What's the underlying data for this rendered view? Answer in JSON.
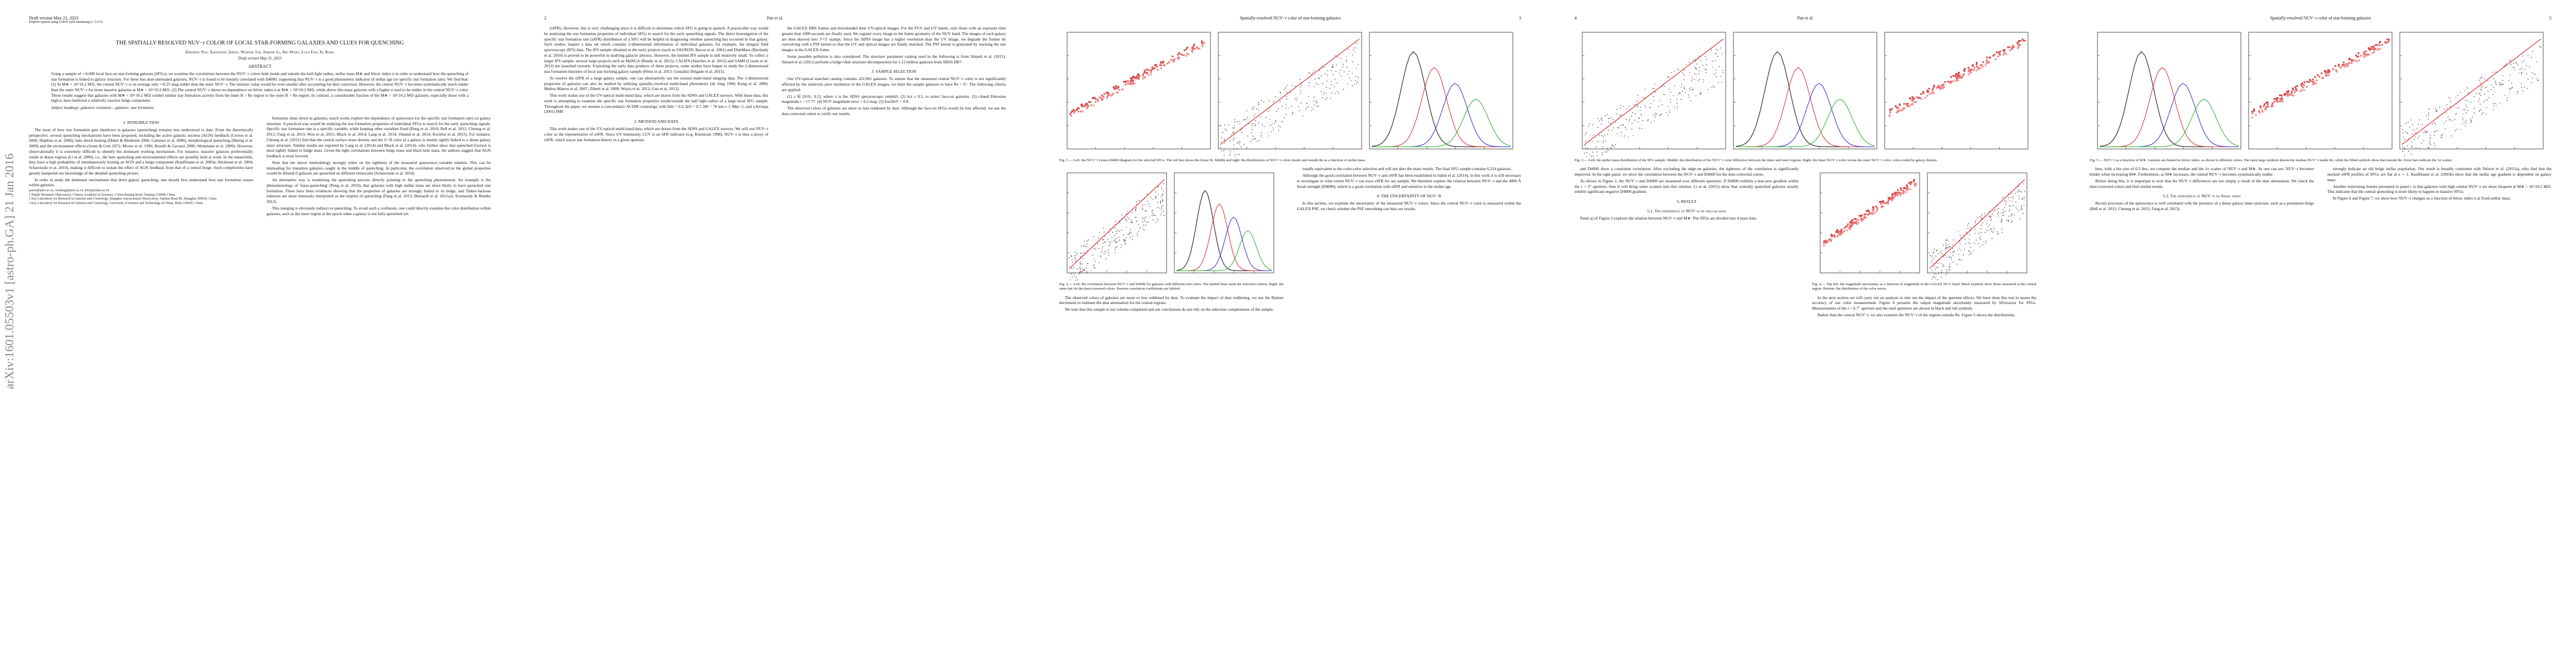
{
  "arxiv_stamp": "arXiv:1601.05503v1  [astro-ph.GA]  21 Jan 2016",
  "pages": [
    {
      "header": {
        "left": "Draft version May 21, 2023",
        "sub": "Preprint typeset using LaTeX style emulateapj v. 5/2/11"
      },
      "title": "THE SPATIALLY RESOLVED NUV−r COLOR OF LOCAL STAR-FORMING GALAXIES AND CLUES FOR QUENCHING",
      "authors": "Zhizheng Pan, Xianzhong Zheng, Weipeng Lin, Jinrong Li, Jing Wang, Lulu Fan, Xu Kong",
      "date": "Draft version May 21, 2023",
      "abstract_heading": "ABSTRACT",
      "abstract": "Using a sample of ∼6,000 local face-on star-forming galaxies (SFGs), we examine the correlations between the NUV−r colors both inside and outside the half-light radius, stellar mass M∗ and Sérsic index n in order to understand how the quenching of star formation is linked to galaxy structure. For these less dust-attenuated galaxies, NUV−r is found to be linearly correlated with D4000, supporting that NUV−r is a good photometric indicator of stellar age (or specific star formation rate). We find that: (1) At M∗ < 10^10.2 M⊙, the central NUV−r is on average only ∼0.25 mag redder than the outer NUV−r. The intrinsic value would be even smaller after accounting for dust correction. However, the central NUV−r becomes systematically much redder than the outer NUV−r for more massive galaxies at M∗ > 10^10.2 M⊙. (2) The central NUV−r shows no dependence on Sérsic index n at M∗ < 10^10.2 M⊙, while above this mass galaxies with a higher n tend to be redder in the central NUV−r color. These results suggest that galaxies with M∗ < 10^10.2 M⊙ exhibit similar star formation activity from the inner R < Re region to the outer R > Re region. In contrast, a considerable fraction of the M∗ > 10^10.2 M⊙ galaxies, especially those with a high n, have harbored a relatively inactive bulge component.",
      "keywords": "Subject headings: galaxies: evolution – galaxies: star formation",
      "columns": [
        [
          {
            "kind": "h",
            "text": "1. INTRODUCTION"
          },
          {
            "kind": "p",
            "text": "The issue of how star formation gets shutdown in galaxies (quenching) remains less understood to date. From the theoretically perspective, several quenching mechanisms have been proposed, including the active galactic nucleus (AGN) feedback (Croton et al. 2006; Hopkins et al. 2006), halo shock heating (Dekel & Birnboim 2006; Cattaneo et al. 2006), morphological quenching (Martig et al. 2009) and the environment effects (Gunn & Gott 1972; Moore et al. 1996; Boselli & Gavazzi 2006; Weinmann et al. 2009). However, observationally it is extremely difficult to identify the dominant working mechanism. For instance, massive galaxies preferentially reside in dense regions (Li et al. 2006), i.e., the halo quenching and environmental effects are possibly both at work. In the meanwhile, they have a high probability of simultaneously hosting an AGN and a bulge component (Kauffmann et al. 2003a; Heckman et al. 2004; Schawinski et al. 2010), making it difficult to isolate the effect of AGN feedback from that of a central bulge. Such complexities have greatly hampered our knowledge of the detailed quenching picture."
          },
          {
            "kind": "p",
            "text": "In order to study the dominant mechanisms that drive galaxy quenching, one should first understand how star formation ceases within galaxies."
          },
          {
            "kind": "note",
            "text": "panzz@pmo.ac.cn, xzzheng@pmo.ac.cn, linwp@shao.ac.cn"
          },
          {
            "kind": "note",
            "text": "1 Purple Mountain Observatory, Chinese Academy of Sciences, 2 West Beijing Road, Nanjing 210008, China"
          },
          {
            "kind": "note",
            "text": "2 Key Laboratory for Research in Galaxies and Cosmology, Shanghai Astronomical Observatory, Nandan Road 80, Shanghai 200030, China"
          },
          {
            "kind": "note",
            "text": "3 Key Laboratory for Research in Galaxies and Cosmology, University of Science and Technology of China, Hefei 230026, China"
          }
        ],
        [
          {
            "kind": "p",
            "text": "formation shuts down in galaxies, much works explore the dependence of quiescence (or the specific star formation rate) on galaxy structure. A practical way would be studying the star formation properties of individual SFGs to search for the early quenching signals. Specific star formation rate is a specific variable, while keeping other variables fixed (Peng et al. 2010; Bell et al. 2012; Cheung et al. 2012; Fang et al. 2013; Woo et al. 2015; Bluck et al. 2014; Lang et al. 2014; Omand et al. 2014; Kochfar et al. 2015). For instance, Cheung et al. (2012) find that the central surface mass density and the U−B color of a galaxy is mostly tightly linked to a dense galaxy inner structure. Similar results are reported by Lang et al. (2014) and Bluck et al. (2014), who further show that quenched fraction is most tightly linked to bulge mass. Given the tight correlations between bulge mass and black hole mass, the authors suggest that AGN feedback is most favored."
          },
          {
            "kind": "p",
            "text": "Note that the above methodology strongly relies on the tightness of the measured quiescence–variable relation. This can be misleading for transition galaxies caught in the middle of quenching. In particular, the correlation observed in the global properties would be diluted if galaxies are quenched on different timescales (Schawinski et al. 2014)."
          },
          {
            "kind": "p",
            "text": "An alternative way is examining the quenching process directly pointing to the quenching phenomenon. An example is the phenomenology of 'mass-quenching' (Peng et al. 2010), that galaxies with high stellar mass are more likely to have quenched star formation. There have been evidences showing that the properties of galaxies are strongly linked to its bulge, and Tinker-Jackson relations are more tenuously interpreted as the imprint of quenching (Fang et al. 2013; Bernardi et al. 2011a,b; Kormendy & Bender 2012)."
          },
          {
            "kind": "p",
            "text": "This merging is obviously indirect to quenching. To avoid such a confusion, one could directly examine the color distribution within galaxies, such as the inner region at the epoch when a galaxy is not fully quenched yet."
          }
        ]
      ]
    },
    {
      "header": {
        "left": "2",
        "center": "Pan et al.",
        "right": ""
      },
      "columns": [
        [
          {
            "kind": "p",
            "text": "(sSFR). However, this is very challenging since it is difficult to determine which SFG is going to quench. A practicable way would be analyzing the star formation properties of individual SFGs to search for the early quenching signals. The direct investigation of the specific star formation rate (sSFR) distribution of a SFG will be helpful in diagnosing whether quenching has occurred in that galaxy. Such studies require a data set which contains 2-dimensional information of individual galaxies, for example, the integral field spectroscopy (IFS) data. The IFS sample obtained in the early projects (such as SAURON; Bacon et al. 2001) and DiskMass (Bershady et al. 2010) is proved to be powerful in studying galactic physics. However, the limited IFS sample is still relatively small. To collect a larger IFS sample, several large projects such as MaNGA (Bundy et al. 2015), CALIFA (Sánchez et al. 2012) and SAMI (Croom et al. 2012) are launched recently. Exploiting the early data products of these projects, some studies have begun to study the 2-dimensional star formation histories of local star-forming galaxy sample (Pérez et al. 2013; González Delgado et al. 2015)."
          },
          {
            "kind": "p",
            "text": "To resolve the sSFR of a large galaxy sample, one can alternatively use the existed multi-band imaging data. The 2-dimensional properties of galaxies can also be studied by utilizing spatially-resolved multi-band photometry (de Jong 1996; Kong et al. 2000; Muñoz-Mateos et al. 2007; Zibetti et al. 2009; Wuyts et al. 2012; Guo et al. 2012)."
          },
          {
            "kind": "p",
            "text": "This work makes use of the UV-optical multi-band data, which are drawn from the SDSS and GALEX surveys. With these data, this work is attempting to examine the specific star formation properties inside/outside the half light radius of a large local SFG sample. Throughout the paper, we assume a concordance ΛCDM cosmology with Ωm = 0.3, ΩΛ = 0.7, H0 = 70 km s−1 Mpc−1, and a Kroupa (2001) IMF."
          },
          {
            "kind": "h",
            "text": "2. METHOD AND DATA"
          },
          {
            "kind": "p",
            "text": "This work makes use of the UV-optical multi-band data, which are drawn from the SDSS and GALEX surveys. We will use NUV−r color as the representative of sSFR. Since UV luminosity LUV is an SFR indicator (e.g. Kennicutt 1998), NUV−r is thus a proxy of sSFR, which traces star formation history in a given aperture."
          }
        ],
        [
          {
            "kind": "p",
            "text": "the GALEX DR6 frames and downloaded their UV-optical images. For the FUV and UV bands, only those with an exposure time greater than 1000 seconds are finally used. We register every image to the frame geometry of the NUV band. The images of each galaxy are then skewed into 3′×3′ stamps. Since the SDSS image has a higher resolution than the UV image, we degrade the former by convolving with a PSF kernel so that the UV and optical images are finally matched. The PSF kernel is generated by stacking the star images in the GALEX frame."
          },
          {
            "kind": "p",
            "text": "Some possible pollution is also considered. The structure parameter catalog used in the following is from Simard et al. (2011). Simard et al. (2011) perform a bulge+disk structure decomposition for 1.12 million galaxies from SDSS DR7."
          },
          {
            "kind": "h",
            "text": "3. SAMPLE SELECTION"
          },
          {
            "kind": "p",
            "text": "Our UV-optical matched catalog contains 222,065 galaxies. To ensure that the measured central NUV−r color is not significantly affected by the relatively poor resolution of the GALEX images, we limit the sample galaxies to have Re > 6″. The following criteria are applied:"
          },
          {
            "kind": "p",
            "text": "(1) z ∈ [0.01, 0.1]; where z is the SDSS spectroscopic redshift. (2) b/a ≥ 0.5, to select face-on galaxies. (3) r-band Petrosian magnitude r < 17.77. (4) NUV magnitude error < 0.2 mag. (5) fracDeV < 0.8."
          },
          {
            "kind": "p",
            "text": "The observed colors of galaxies are more or less reddened by dust. Although the face-on SFGs would be less affected, we use the dust-corrected colors to verify our results."
          }
        ]
      ]
    },
    {
      "header": {
        "left": "",
        "center": "Spatially-resolved NUV−r color of star-forming galaxies",
        "right": "3"
      },
      "top_figure": "Fig. 1.— Left: the NUV−r versus D4000 diagram for the selected SFGs. The red line shows the linear fit. Middle and right: the distributions of NUV−r colors inside and outside Re as a function of stellar mass.",
      "columns": [
        [
          {
            "kind": "fig",
            "text": "Fig. 2.— Left: the correlation between NUV−r and D4000 for galaxies with different axis ratios. The dashed lines mark the selection criteria. Right: the same but for the dust-corrected colors. Pearson correlation coefficients are labeled."
          },
          {
            "kind": "p",
            "text": "The observed colors of galaxies are more or less reddened by dust. To evaluate the impact of dust reddening, we use the Balmer decrement to estimate the dust attenuation for the central regions."
          },
          {
            "kind": "p",
            "text": "We note that this sample is not volume-completed and our conclusions do not rely on the selection completeness of the sample."
          }
        ],
        [
          {
            "kind": "p",
            "text": "ionally equivalent to the color-color selection and will not alter the main results. The final SFG sample contains 6,324 galaxies."
          },
          {
            "kind": "p",
            "text": "Although the good correlation between NUV−r and sSFR has been established in Salim et al. (2014), in this work it is still necessary to investigate to what extent NUV−r can trace sSFR for our sample. We therefore explore the relation between NUV−r and the 4000 Å break strength (D4000), which is a good correlation with sSFR and sensitive to the stellar age."
          },
          {
            "kind": "h",
            "text": "4. THE UNCERTAINTY OF NUV−R"
          },
          {
            "kind": "p",
            "text": "In this section, we examine the uncertainty of the measured NUV−r colors. Since the central NUV−r color is measured within the GALEX PSF, we check whether the PSF smoothing can bias our results."
          }
        ]
      ]
    },
    {
      "header": {
        "left": "4",
        "center": "Pan et al.",
        "right": ""
      },
      "top_figure": "Fig. 3.— Left: the stellar mass distribution of the SFG sample. Middle: the distribution of the NUV−r color difference between the inner and outer regions. Right: the inner NUV−r color versus the outer NUV−r color, color-coded by galaxy density.",
      "columns": [
        [
          {
            "kind": "p",
            "text": "and D4000 show a consistent correlation. After excluding the edge-on galaxies, the tightness of the correlation is significantly improved. In the right panel, we show the correlation between the NUV−r and D4000 for the dust-corrected colors."
          },
          {
            "kind": "p",
            "text": "As shown in Figure 2, the NUV−r and D4000 are measured over different apertures. If D4000 exhibits a non-zero gradient within the r < 3″ aperture, then it will bring some scatters into this relation. Li et al. (2015) show that centrally quenched galaxies usually exhibit significant negative D4000 gradient."
          },
          {
            "kind": "h",
            "text": "5. RESULT"
          },
          {
            "kind": "h",
            "text": "5.1. The dependence of NUV−r on stellar mass"
          },
          {
            "kind": "p",
            "text": "Panel a) of Figure 3 explores the relation between NUV−r and M∗. The SFGs are divided into 4 mass bins."
          }
        ],
        [
          {
            "kind": "fig",
            "text": "Fig. 4.— Top left: the magnitude uncertainty as a function of magnitude in the GALEX NUV band. Black symbols show those measured at the central region. Bottom: the distribution of the color errors."
          },
          {
            "kind": "p",
            "text": "In the next section we will carry out an analysis to rule out the impact of the aperture effects. We have done this test to assess the accuracy of our color measurement. Figure 4 presents the output magnitude uncertainty measured by SExtractor for SFGs. Measurements of the r < 6.7″ aperture and the total apertures are shown in black and red symbols."
          },
          {
            "kind": "p",
            "text": "Rather than the central NUV−r, we also examine the NUV−r of the regions outside Re. Figure 5 shows the distributions."
          }
        ]
      ]
    },
    {
      "header": {
        "left": "",
        "center": "Spatially-resolved NUV−r color of star-forming galaxies",
        "right": "5"
      },
      "top_figure": "Fig. 5.— NUV−r as a function of M∗. Galaxies are binned in Sérsic index, as shown in different colors. The open large symbols denote the median NUV−r inside Re, while the filled symbols show that outside Re. Error bars indicate the 1σ scatter.",
      "columns": [
        [
          {
            "kind": "p",
            "text": "bins, with a bin size of 0.3 dex, we compute the median and the 1σ scatter of NUV−r and M∗. As one can see, NUV−r becomes bolder when increasing M∗. Furthermore, as M∗ increases, the central NUV−r becomes systematically redder."
          },
          {
            "kind": "p",
            "text": "Before doing this, it is important to note that the NUV−r differences are not simply a result of the dust attenuation. We check the dust-corrected colors and find similar trends."
          },
          {
            "kind": "h",
            "text": "5.2. The dependence of NUV−r on Sérsic index"
          },
          {
            "kind": "p",
            "text": "Recent processes of the quiescence is well correlated with the presence of a dense galaxy inner structure, such as a prominent bulge (Bell et al. 2012; Cheung et al. 2012; Fang et al. 2013)."
          }
        ],
        [
          {
            "kind": "p",
            "text": "strongly indicate an old bulge stellar population. Our result is broadly consistent with Nelson et al. (2015a), who find that the stacked sSFR profiles of SFGs are flat at z ∼ 1. Kauffmann et al. (2003b) show that the stellar age gradient is dependent on galaxy mass."
          },
          {
            "kind": "p",
            "text": "Another interesting feature presented in panel c is that galaxies with high central NUV−r are more frequent at M∗ > 10^10.2 M⊙. This indicates that the central quenching is more likely to happen in massive SFGs."
          },
          {
            "kind": "p",
            "text": "In Figure 6 and Figure 7, we show how NUV−r changes as a function of Sérsic index n at fixed stellar mass."
          }
        ]
      ]
    }
  ]
}
